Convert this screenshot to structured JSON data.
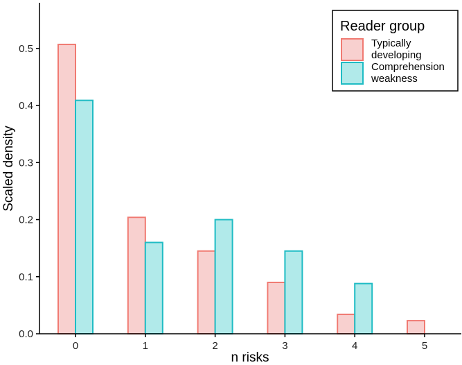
{
  "chart_data": {
    "type": "bar",
    "categories": [
      "0",
      "1",
      "2",
      "3",
      "4",
      "5"
    ],
    "series": [
      {
        "name": "Typically developing",
        "legend_lines": [
          "Typically",
          "developing"
        ],
        "values": [
          0.507,
          0.204,
          0.145,
          0.09,
          0.034,
          0.023
        ],
        "fill": "#f8d0cf",
        "stroke": "#f07a72"
      },
      {
        "name": "Comprehension weakness",
        "legend_lines": [
          "Comprehension",
          "weakness"
        ],
        "values": [
          0.409,
          0.16,
          0.2,
          0.145,
          0.088,
          null
        ],
        "fill": "#b1eaea",
        "stroke": "#1fbcc4"
      }
    ],
    "xlabel": "n risks",
    "ylabel": "Scaled density",
    "ylim": [
      0,
      0.58
    ],
    "yticks": [
      0.0,
      0.1,
      0.2,
      0.3,
      0.4,
      0.5
    ],
    "ytick_labels": [
      "0.0",
      "0.1",
      "0.2",
      "0.3",
      "0.4",
      "0.5"
    ],
    "legend": {
      "title": "Reader group",
      "position": "top-right"
    },
    "grid": false
  }
}
